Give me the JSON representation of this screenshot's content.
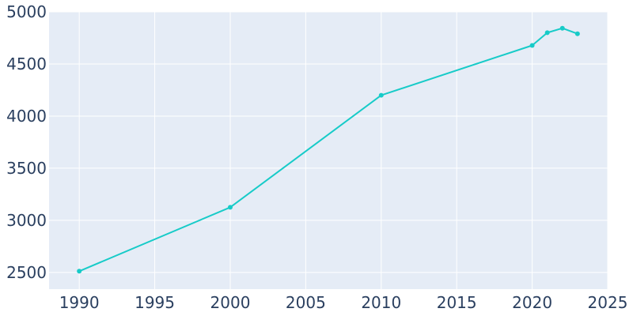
{
  "chart_data": {
    "type": "line",
    "title": "",
    "xlabel": "",
    "ylabel": "",
    "x": [
      1990,
      2000,
      2010,
      2020,
      2021,
      2022,
      2023
    ],
    "series": [
      {
        "values": [
          2512,
          3125,
          4200,
          4678,
          4800,
          4843,
          4790
        ]
      }
    ],
    "xlim": [
      1988,
      2025
    ],
    "ylim": [
      2340,
      5000
    ],
    "xticks": [
      1990,
      1995,
      2000,
      2005,
      2010,
      2015,
      2020,
      2025
    ],
    "yticks": [
      2500,
      3000,
      3500,
      4000,
      4500,
      5000
    ],
    "xtick_labels": [
      "1990",
      "1995",
      "2000",
      "2005",
      "2010",
      "2015",
      "2020",
      "2025"
    ],
    "ytick_labels": [
      "2500",
      "3000",
      "3500",
      "4000",
      "4500",
      "5000"
    ],
    "grid": true,
    "colors": {
      "plot_background": "#e5ecf6",
      "grid": "#ffffff",
      "line": "#17cbc8",
      "tick_text": "#2a3f5f"
    }
  }
}
